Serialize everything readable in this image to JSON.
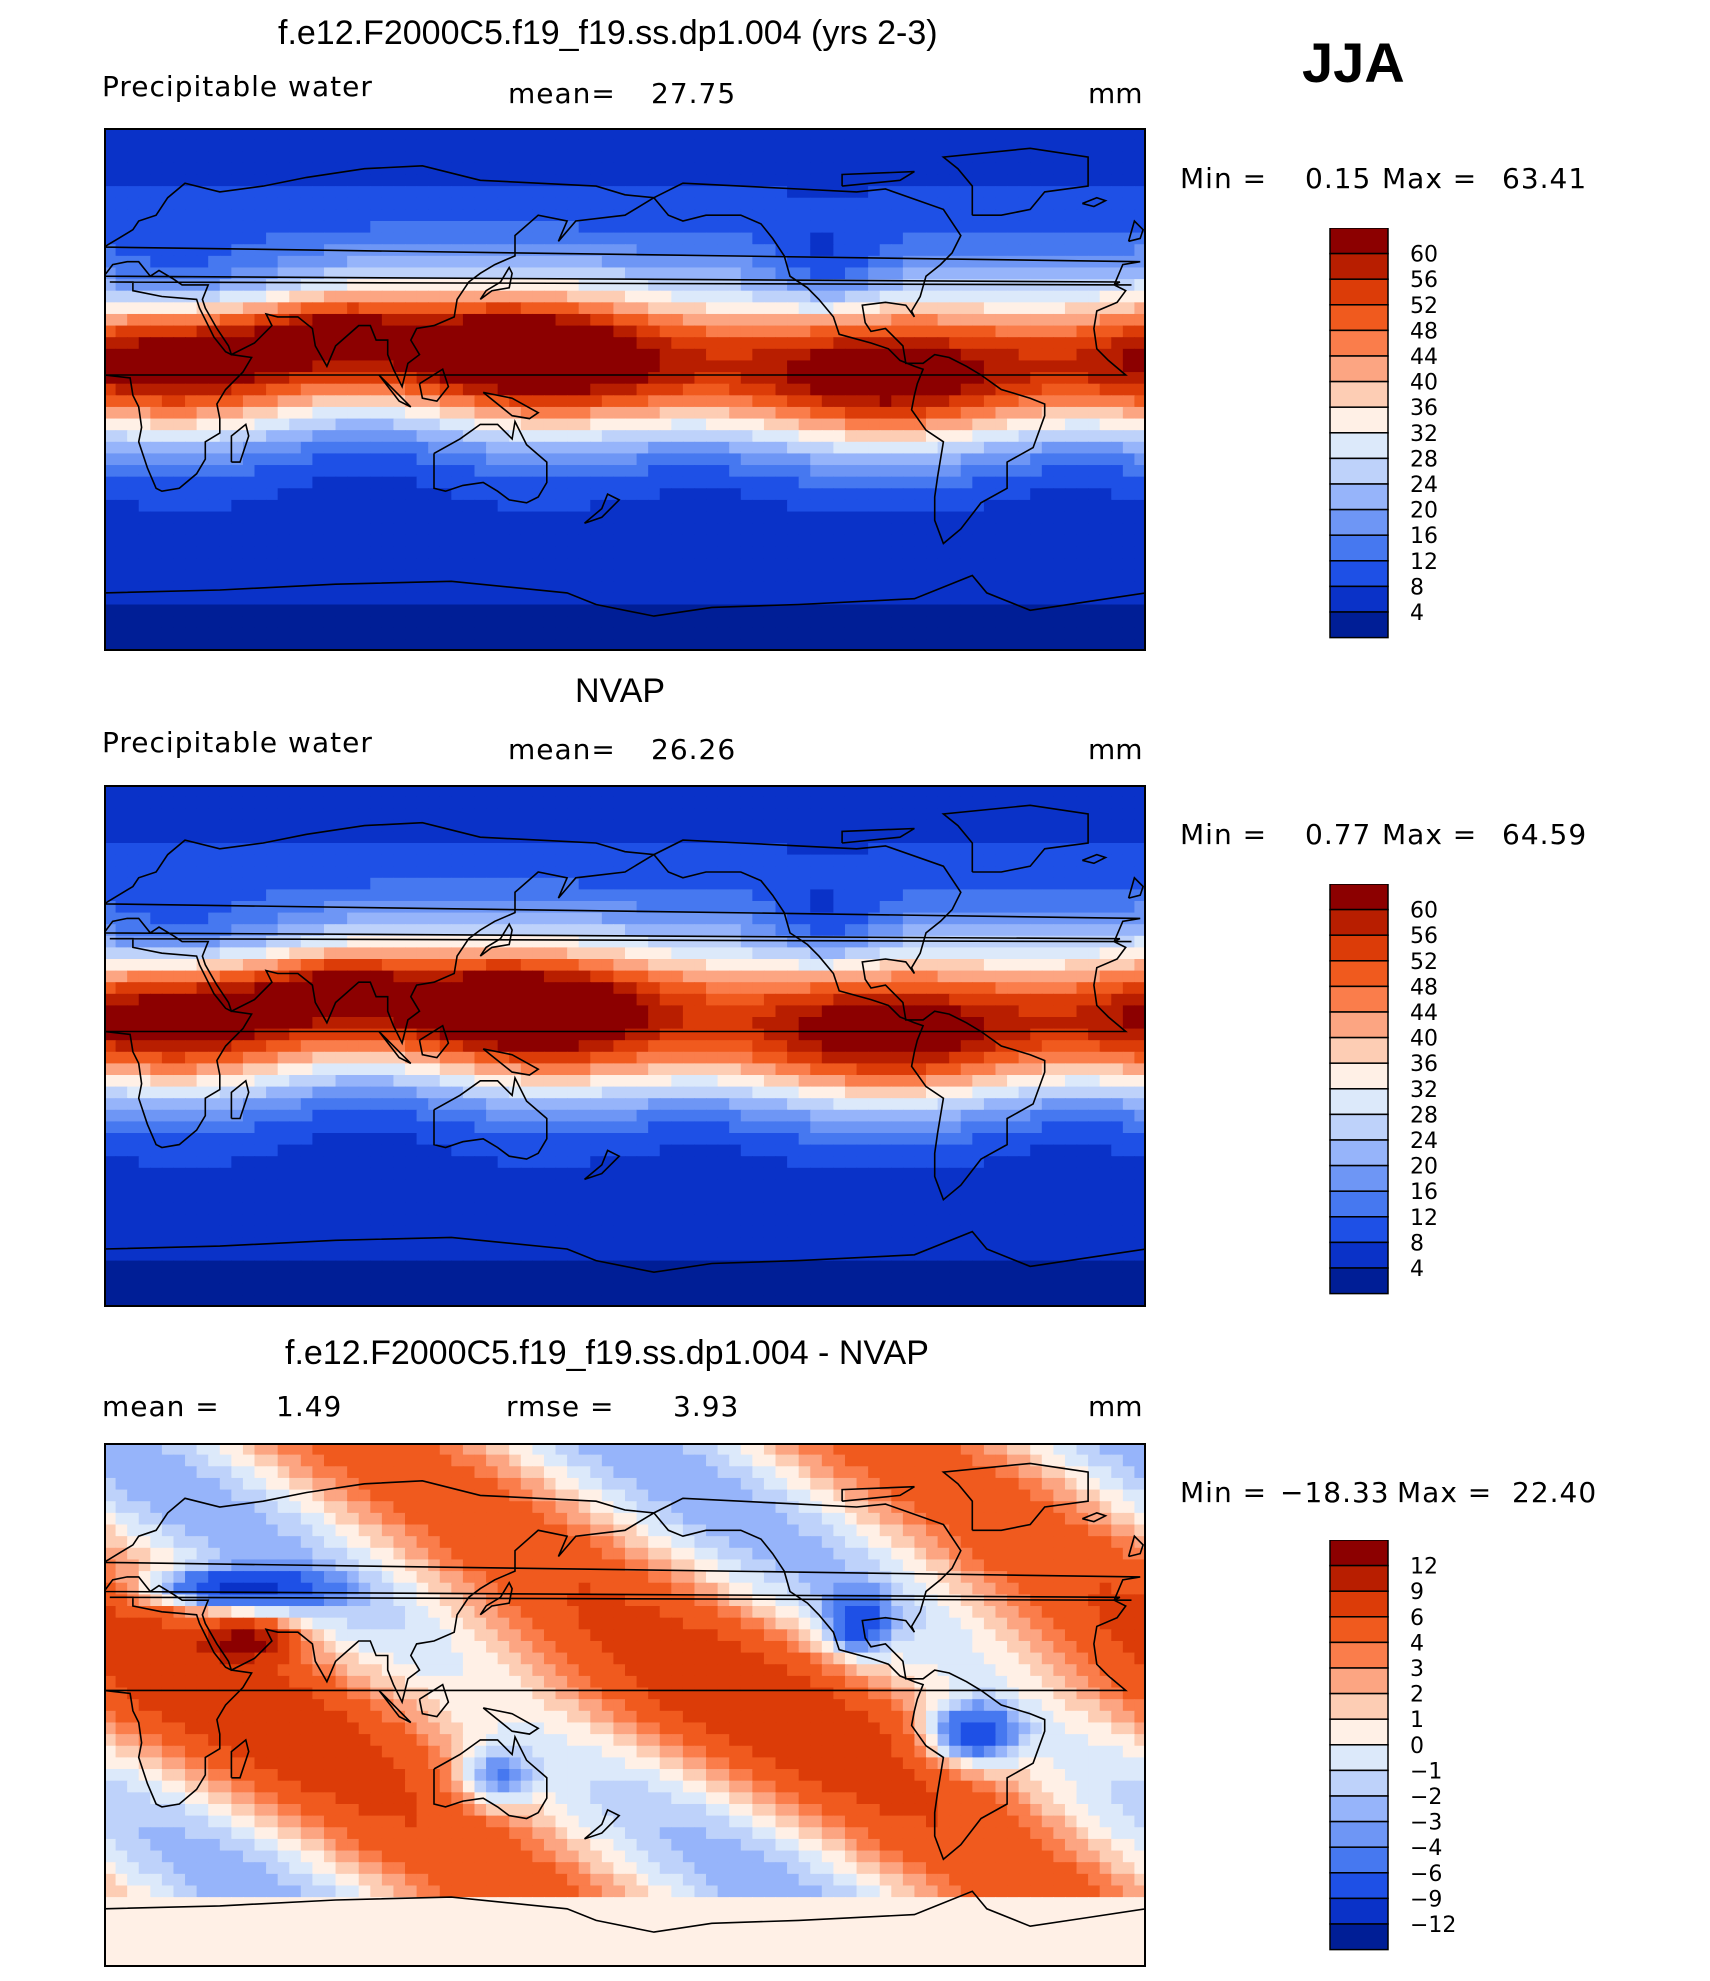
{
  "season": "JJA",
  "panels": [
    {
      "title": "f.e12.F2000C5.f19_f19.ss.dp1.004 (yrs 2-3)",
      "variable": "Precipitable water",
      "stat1_label": "mean=",
      "stat1_value": "27.75",
      "stat2_label": "",
      "stat2_value": "",
      "units": "mm",
      "min_label": "Min =",
      "min_value": "0.15",
      "max_label": "Max =",
      "max_value": "63.41"
    },
    {
      "title": "NVAP",
      "variable": "Precipitable water",
      "stat1_label": "mean=",
      "stat1_value": "26.26",
      "stat2_label": "",
      "stat2_value": "",
      "units": "mm",
      "min_label": "Min =",
      "min_value": "0.77",
      "max_label": "Max =",
      "max_value": "64.59"
    },
    {
      "title": "f.e12.F2000C5.f19_f19.ss.dp1.004 - NVAP",
      "variable": "",
      "stat1_label": "mean =",
      "stat1_value": "1.49",
      "stat2_label": "rmse =",
      "stat2_value": "3.93",
      "units": "mm",
      "min_label": "Min =",
      "min_value": "−18.33",
      "max_label": "Max =",
      "max_value": "22.40"
    }
  ],
  "chart_data": [
    {
      "type": "heatmap",
      "title": "f.e12.F2000C5.f19_f19.ss.dp1.004 (yrs 2-3)",
      "field": "Precipitable water",
      "units": "mm",
      "mean": 27.75,
      "min": 0.15,
      "max": 63.41,
      "colorbar_labels": [
        "60",
        "56",
        "52",
        "48",
        "44",
        "40",
        "36",
        "32",
        "28",
        "24",
        "20",
        "16",
        "12",
        "8",
        "4"
      ],
      "colorbar_colors": [
        "#8c0000",
        "#b81e00",
        "#dc3c08",
        "#f05a1e",
        "#fa7d4b",
        "#fca582",
        "#fdcdb4",
        "#fff0e6",
        "#dce9fa",
        "#bed2fa",
        "#96b4fa",
        "#6e96f5",
        "#4678f0",
        "#1e50e6",
        "#0a32c8",
        "#001e96"
      ],
      "pattern": "model"
    },
    {
      "type": "heatmap",
      "title": "NVAP",
      "field": "Precipitable water",
      "units": "mm",
      "mean": 26.26,
      "min": 0.77,
      "max": 64.59,
      "colorbar_labels": [
        "60",
        "56",
        "52",
        "48",
        "44",
        "40",
        "36",
        "32",
        "28",
        "24",
        "20",
        "16",
        "12",
        "8",
        "4"
      ],
      "colorbar_colors": [
        "#8c0000",
        "#b81e00",
        "#dc3c08",
        "#f05a1e",
        "#fa7d4b",
        "#fca582",
        "#fdcdb4",
        "#fff0e6",
        "#dce9fa",
        "#bed2fa",
        "#96b4fa",
        "#6e96f5",
        "#4678f0",
        "#1e50e6",
        "#0a32c8",
        "#001e96"
      ],
      "pattern": "obs"
    },
    {
      "type": "heatmap",
      "title": "f.e12.F2000C5.f19_f19.ss.dp1.004 - NVAP",
      "field": "Precipitable water difference",
      "units": "mm",
      "mean": 1.49,
      "rmse": 3.93,
      "min": -18.33,
      "max": 22.4,
      "colorbar_labels": [
        "12",
        "9",
        "6",
        "4",
        "3",
        "2",
        "1",
        "0",
        "−1",
        "−2",
        "−3",
        "−4",
        "−6",
        "−9",
        "−12"
      ],
      "colorbar_colors": [
        "#8c0000",
        "#b81e00",
        "#dc3c08",
        "#f05a1e",
        "#fa7d4b",
        "#fca582",
        "#fdcdb4",
        "#fff0e6",
        "#dce9fa",
        "#bed2fa",
        "#96b4fa",
        "#6e96f5",
        "#4678f0",
        "#1e50e6",
        "#0a32c8",
        "#001e96"
      ],
      "pattern": "diff"
    }
  ]
}
